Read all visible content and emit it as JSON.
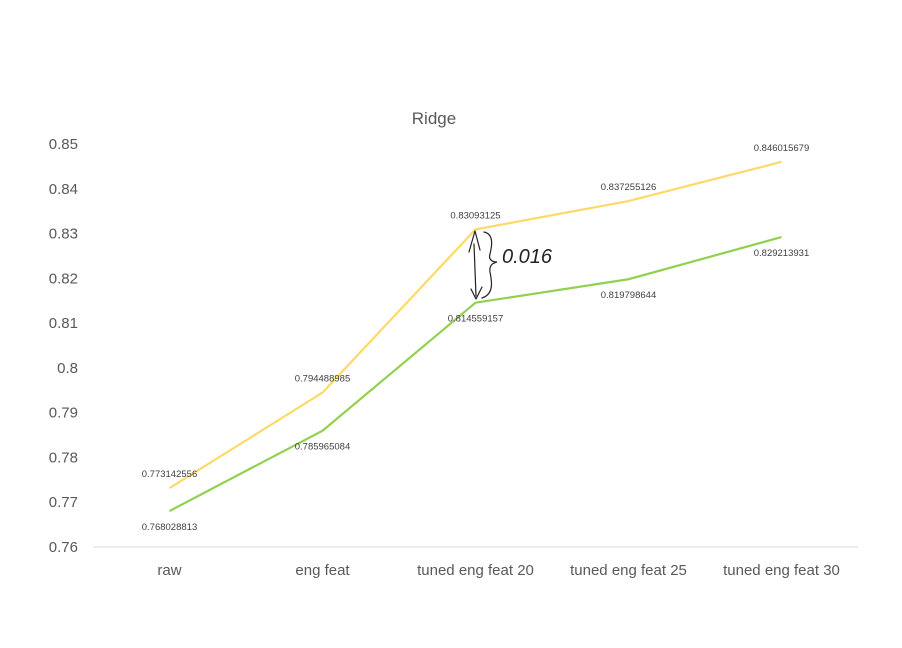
{
  "chart_data": {
    "type": "line",
    "title": "Ridge",
    "xlabel": "",
    "ylabel": "",
    "categories": [
      "raw",
      "eng feat",
      "tuned eng feat 20",
      "tuned eng feat 25",
      "tuned eng feat 30"
    ],
    "ylim": [
      0.76,
      0.85
    ],
    "yticks": [
      "0.76",
      "0.77",
      "0.78",
      "0.79",
      "0.8",
      "0.81",
      "0.82",
      "0.83",
      "0.84",
      "0.85"
    ],
    "grid": false,
    "series": [
      {
        "color": "#FFD966",
        "values": [
          0.773142556,
          0.794488985,
          0.83093125,
          0.837255126,
          0.846015679
        ],
        "labels": [
          "0.773142556",
          "0.794488985",
          "0.83093125",
          "0.837255126",
          "0.846015679"
        ]
      },
      {
        "color": "#92D050",
        "values": [
          0.768028813,
          0.785965084,
          0.814559157,
          0.819798644,
          0.829213931
        ],
        "labels": [
          "0.768028813",
          "0.785965084",
          "0.814559157",
          "0.819798644",
          "0.829213931"
        ]
      }
    ],
    "annotation": "0.016"
  }
}
